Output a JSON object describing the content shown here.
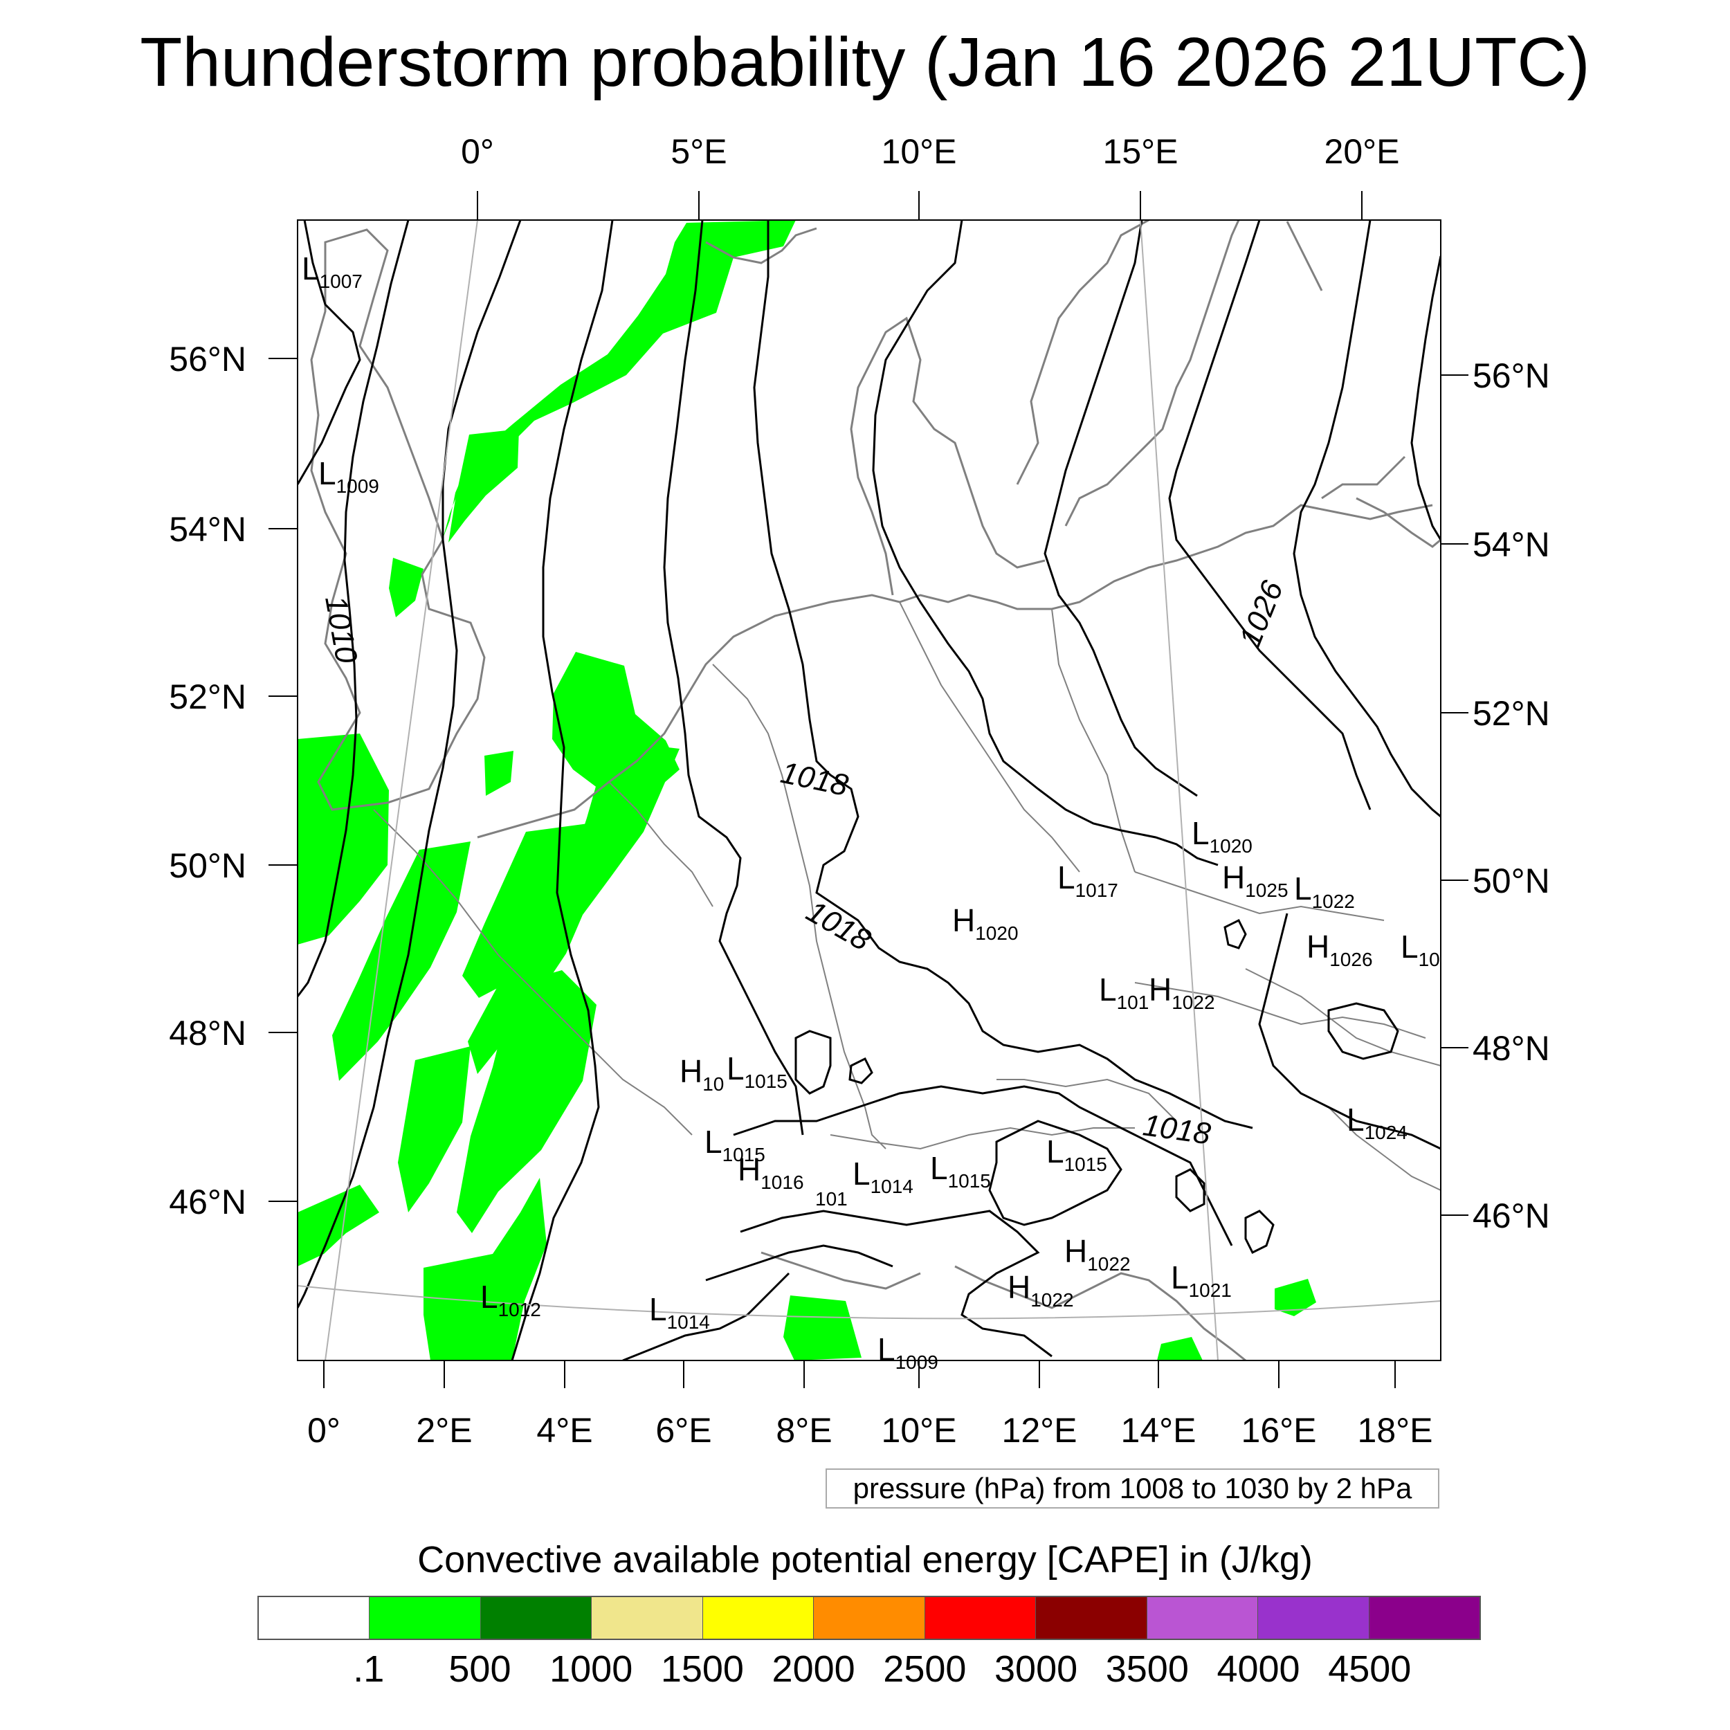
{
  "title": "Thunderstorm probability (Jan 16 2026 21UTC)",
  "axes": {
    "top_lon_labels": [
      "0°",
      "5°E",
      "10°E",
      "15°E",
      "20°E"
    ],
    "bottom_lon_labels": [
      "0°",
      "2°E",
      "4°E",
      "6°E",
      "8°E",
      "10°E",
      "12°E",
      "14°E",
      "16°E",
      "18°E"
    ],
    "left_lat_labels": [
      "56°N",
      "54°N",
      "52°N",
      "50°N",
      "48°N",
      "46°N"
    ],
    "right_lat_labels": [
      "56°N",
      "54°N",
      "52°N",
      "50°N",
      "48°N",
      "46°N"
    ]
  },
  "pressure_systems": [
    {
      "letter": "L",
      "value": "1007"
    },
    {
      "letter": "L",
      "value": "1009"
    },
    {
      "letter": "L",
      "value": "1020"
    },
    {
      "letter": "L",
      "value": "1017"
    },
    {
      "letter": "H",
      "value": "1025"
    },
    {
      "letter": "L",
      "value": "1022"
    },
    {
      "letter": "H",
      "value": "1020"
    },
    {
      "letter": "H",
      "value": "1026"
    },
    {
      "letter": "L",
      "value": "10"
    },
    {
      "letter": "L",
      "value": "101"
    },
    {
      "letter": "H",
      "value": "1022"
    },
    {
      "letter": "H",
      "value": "10"
    },
    {
      "letter": "L",
      "value": "1015"
    },
    {
      "letter": "L",
      "value": "1015"
    },
    {
      "letter": "H",
      "value": "1016"
    },
    {
      "letter": "",
      "value": "101"
    },
    {
      "letter": "L",
      "value": "1014"
    },
    {
      "letter": "L",
      "value": "1015"
    },
    {
      "letter": "L",
      "value": "1015"
    },
    {
      "letter": "L",
      "value": "1024"
    },
    {
      "letter": "H",
      "value": "1022"
    },
    {
      "letter": "H",
      "value": "1022"
    },
    {
      "letter": "L",
      "value": "1021"
    },
    {
      "letter": "L",
      "value": "1012"
    },
    {
      "letter": "L",
      "value": "1014"
    },
    {
      "letter": "L",
      "value": "1009"
    }
  ],
  "isobar_labels": [
    "1010",
    "1018",
    "1018",
    "1018",
    "1026"
  ],
  "pressure_note": "pressure (hPa) from 1008 to 1030 by 2 hPa",
  "legend": {
    "title": "Convective available potential energy [CAPE] in (J/kg)",
    "colors": [
      "#ffffff",
      "#00ff00",
      "#008000",
      "#f0e68c",
      "#ffff00",
      "#ff8c00",
      "#ff0000",
      "#8b0000",
      "#ba55d3",
      "#9932cc",
      "#8b008b"
    ],
    "labels": [
      ".1",
      "500",
      "1000",
      "1500",
      "2000",
      "2500",
      "3000",
      "3500",
      "4000",
      "4500"
    ]
  }
}
